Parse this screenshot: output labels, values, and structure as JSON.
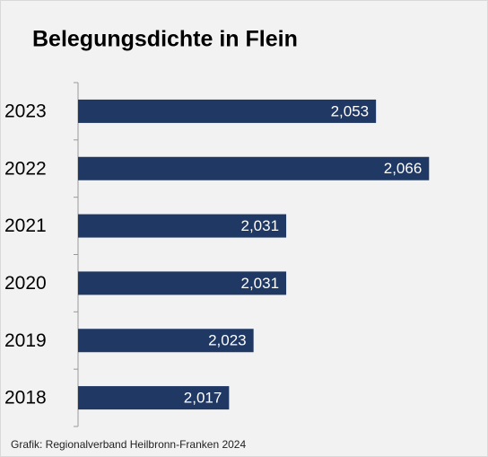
{
  "chart_data": {
    "type": "barh",
    "title": "Belegungsdichte in Flein",
    "categories": [
      "2023",
      "2022",
      "2021",
      "2020",
      "2019",
      "2018"
    ],
    "values": [
      2.053,
      2.066,
      2.031,
      2.031,
      2.023,
      2.017
    ],
    "value_labels": [
      "2,053",
      "2,066",
      "2,031",
      "2,031",
      "2,023",
      "2,017"
    ],
    "color": "#203864",
    "xlim": [
      1.98,
      2.08
    ],
    "source": "Grafik: Regionalverband Heilbronn-Franken 2024"
  }
}
